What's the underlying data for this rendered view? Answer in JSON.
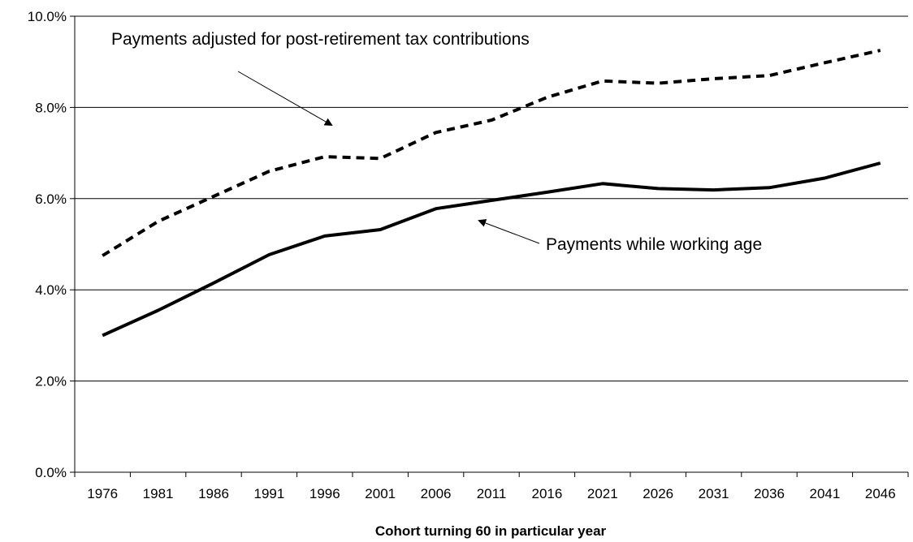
{
  "chart_data": {
    "type": "line",
    "title": "",
    "xlabel": "Cohort turning 60 in particular year",
    "ylabel": "",
    "categories": [
      "1976",
      "1981",
      "1986",
      "1991",
      "1996",
      "2001",
      "2006",
      "2011",
      "2016",
      "2021",
      "2026",
      "2031",
      "2036",
      "2041",
      "2046"
    ],
    "y_tick_labels": [
      "0.0%",
      "2.0%",
      "4.0%",
      "6.0%",
      "8.0%",
      "10.0%"
    ],
    "ylim": [
      0,
      10
    ],
    "grid": "horizontal",
    "legend": "none (series labelled by annotations with arrows)",
    "series": [
      {
        "name": "Payments adjusted for post-retirement tax contributions",
        "style": "dashed",
        "color": "#000000",
        "values": [
          4.75,
          5.5,
          6.05,
          6.6,
          6.92,
          6.88,
          7.45,
          7.72,
          8.22,
          8.58,
          8.53,
          8.63,
          8.7,
          8.98,
          9.25
        ]
      },
      {
        "name": "Payments while working age",
        "style": "solid",
        "color": "#000000",
        "values": [
          3.0,
          3.55,
          4.15,
          4.77,
          5.18,
          5.32,
          5.78,
          5.96,
          6.14,
          6.33,
          6.22,
          6.19,
          6.24,
          6.45,
          6.78
        ]
      }
    ],
    "annotations": [
      {
        "text": "Payments adjusted for post-retirement tax contributions",
        "points_to": "series 1"
      },
      {
        "text": "Payments while working age",
        "points_to": "series 2"
      }
    ]
  }
}
